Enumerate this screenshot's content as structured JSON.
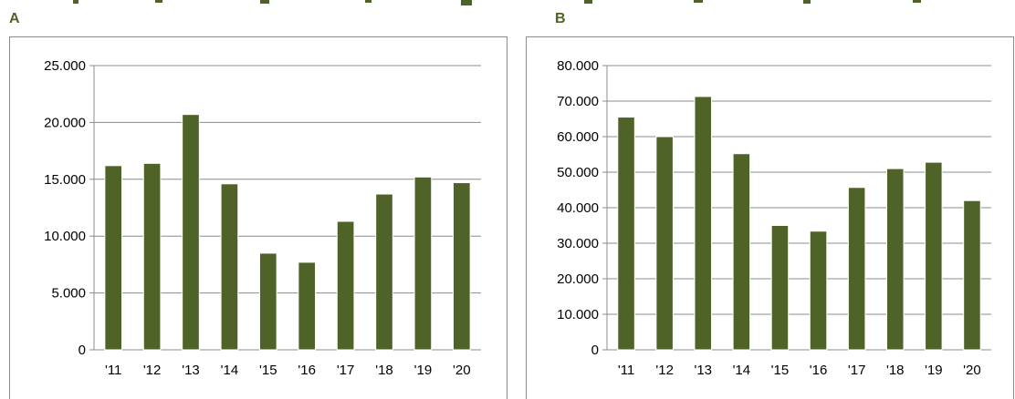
{
  "header_strip_color": "#4f6228",
  "charts": [
    {
      "panel_label": "A",
      "chart_data": {
        "type": "bar",
        "categories": [
          "'11",
          "'12",
          "'13",
          "'14",
          "'15",
          "'16",
          "'17",
          "'18",
          "'19",
          "'20"
        ],
        "values": [
          16200,
          16400,
          20700,
          14600,
          8500,
          7700,
          11300,
          13700,
          15200,
          14700
        ],
        "ylim": [
          0,
          25000
        ],
        "yticks": [
          0,
          5000,
          10000,
          15000,
          20000,
          25000
        ],
        "ytick_labels": [
          "0",
          "5.000",
          "10.000",
          "15.000",
          "20.000",
          "25.000"
        ],
        "grid": true,
        "bar_color": "#4f6228",
        "title": "",
        "xlabel": "",
        "ylabel": ""
      }
    },
    {
      "panel_label": "B",
      "chart_data": {
        "type": "bar",
        "categories": [
          "'11",
          "'12",
          "'13",
          "'14",
          "'15",
          "'16",
          "'17",
          "'18",
          "'19",
          "'20"
        ],
        "values": [
          65500,
          60000,
          71300,
          55200,
          35000,
          33400,
          45700,
          51000,
          52800,
          42000
        ],
        "ylim": [
          0,
          80000
        ],
        "yticks": [
          0,
          10000,
          20000,
          30000,
          40000,
          50000,
          60000,
          70000,
          80000
        ],
        "ytick_labels": [
          "0",
          "10.000",
          "20.000",
          "30.000",
          "40.000",
          "50.000",
          "60.000",
          "70.000",
          "80.000"
        ],
        "grid": true,
        "bar_color": "#4f6228",
        "title": "",
        "xlabel": "",
        "ylabel": ""
      }
    }
  ]
}
